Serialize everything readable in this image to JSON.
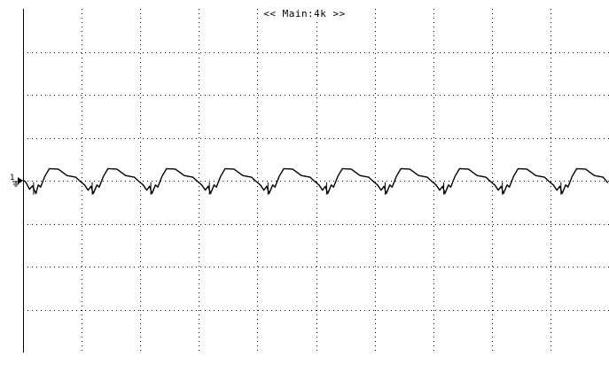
{
  "header": {
    "buffer_label": "<< Main:4k >>"
  },
  "ground_marker": {
    "channel_label": "1"
  },
  "colors": {
    "background": "#ffffff",
    "trace": "#000000",
    "grid": "#000000"
  },
  "chart_data": {
    "type": "line",
    "title": "",
    "xlabel": "",
    "ylabel": "",
    "grid": true,
    "divisions": {
      "x": 10,
      "y": 8
    },
    "xlim": [
      0,
      10
    ],
    "ylim": [
      -4,
      4
    ],
    "series": [
      {
        "x": [
          0.0,
          0.05,
          0.11,
          0.16,
          0.22,
          0.26,
          0.3,
          0.37,
          0.45,
          0.6,
          0.75,
          0.9,
          0.98,
          1.05,
          1.11,
          1.16,
          1.2,
          1.26,
          1.3,
          1.37,
          1.45,
          1.6,
          1.75,
          1.9,
          1.98,
          2.05,
          2.11,
          2.16,
          2.2,
          2.26,
          2.3,
          2.37,
          2.45,
          2.6,
          2.75,
          2.9,
          2.98,
          3.05,
          3.11,
          3.16,
          3.2,
          3.26,
          3.3,
          3.37,
          3.45,
          3.6,
          3.75,
          3.9,
          3.98,
          4.05,
          4.11,
          4.16,
          4.2,
          4.26,
          4.3,
          4.37,
          4.45,
          4.6,
          4.75,
          4.9,
          4.98,
          5.05,
          5.11,
          5.16,
          5.2,
          5.26,
          5.3,
          5.37,
          5.45,
          5.6,
          5.75,
          5.9,
          5.98,
          6.05,
          6.11,
          6.16,
          6.2,
          6.26,
          6.3,
          6.37,
          6.45,
          6.6,
          6.75,
          6.9,
          6.98,
          7.05,
          7.11,
          7.16,
          7.2,
          7.26,
          7.3,
          7.37,
          7.45,
          7.6,
          7.75,
          7.9,
          7.98,
          8.05,
          8.11,
          8.16,
          8.2,
          8.26,
          8.3,
          8.37,
          8.45,
          8.6,
          8.75,
          8.9,
          8.98,
          9.05,
          9.11,
          9.16,
          9.2,
          9.26,
          9.3,
          9.37,
          9.45,
          9.6,
          9.75,
          9.9,
          9.98
        ],
        "y": [
          0.02,
          -0.04,
          -0.2,
          -0.12,
          -0.3,
          -0.1,
          -0.15,
          0.1,
          0.28,
          0.27,
          0.12,
          0.08,
          -0.02,
          -0.1,
          -0.22,
          -0.13,
          -0.3,
          -0.1,
          -0.15,
          0.1,
          0.28,
          0.27,
          0.12,
          0.08,
          -0.02,
          -0.1,
          -0.22,
          -0.13,
          -0.3,
          -0.1,
          -0.15,
          0.1,
          0.28,
          0.27,
          0.12,
          0.08,
          -0.02,
          -0.1,
          -0.22,
          -0.13,
          -0.3,
          -0.1,
          -0.15,
          0.1,
          0.28,
          0.27,
          0.12,
          0.08,
          -0.02,
          -0.1,
          -0.22,
          -0.13,
          -0.3,
          -0.1,
          -0.15,
          0.1,
          0.28,
          0.27,
          0.12,
          0.08,
          -0.02,
          -0.1,
          -0.22,
          -0.13,
          -0.3,
          -0.1,
          -0.15,
          0.1,
          0.28,
          0.27,
          0.12,
          0.08,
          -0.02,
          -0.1,
          -0.22,
          -0.13,
          -0.3,
          -0.1,
          -0.15,
          0.1,
          0.28,
          0.27,
          0.12,
          0.08,
          -0.02,
          -0.1,
          -0.22,
          -0.13,
          -0.3,
          -0.1,
          -0.15,
          0.1,
          0.28,
          0.27,
          0.12,
          0.08,
          -0.02,
          -0.1,
          -0.22,
          -0.13,
          -0.3,
          -0.1,
          -0.15,
          0.1,
          0.28,
          0.27,
          0.12,
          0.08,
          -0.02,
          -0.1,
          -0.22,
          -0.13,
          -0.3,
          -0.1,
          -0.15,
          0.1,
          0.28,
          0.27,
          0.12,
          0.08,
          -0.05
        ]
      }
    ]
  }
}
